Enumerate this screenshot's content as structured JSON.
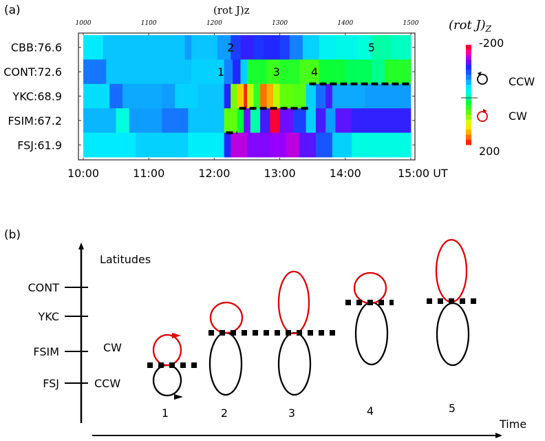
{
  "chart_data": [
    {
      "panel": "(a)",
      "type": "heatmap",
      "title": "(rot J)z",
      "xlabel": "UT",
      "x_range": [
        "10:00",
        "15:00"
      ],
      "xticks_bottom": [
        "10:00",
        "11:00",
        "12:00",
        "13:00",
        "14:00",
        "15:00 UT"
      ],
      "xticks_top": [
        "1000",
        "1100",
        "1200",
        "1300",
        "1400",
        "1500"
      ],
      "rows": [
        {
          "label": "CBB:76.6",
          "segments": [
            [
              10.0,
              10.3,
              -30
            ],
            [
              10.3,
              11.55,
              -45
            ],
            [
              11.55,
              11.65,
              -60
            ],
            [
              11.65,
              12.05,
              -45
            ],
            [
              12.05,
              12.25,
              -60
            ],
            [
              12.25,
              12.4,
              -100
            ],
            [
              12.4,
              12.6,
              -115
            ],
            [
              12.6,
              12.75,
              -105
            ],
            [
              12.75,
              13.0,
              -110
            ],
            [
              13.0,
              13.15,
              -100
            ],
            [
              13.15,
              13.35,
              -70
            ],
            [
              13.35,
              13.6,
              -40
            ],
            [
              13.6,
              13.85,
              -20
            ],
            [
              13.85,
              14.2,
              -10
            ],
            [
              14.2,
              14.4,
              0
            ],
            [
              14.4,
              14.7,
              10
            ],
            [
              14.7,
              15.0,
              5
            ]
          ]
        },
        {
          "label": "CONT:72.6",
          "segments": [
            [
              10.0,
              10.35,
              -75
            ],
            [
              10.35,
              11.65,
              -45
            ],
            [
              11.65,
              12.15,
              -40
            ],
            [
              12.15,
              12.28,
              -70
            ],
            [
              12.28,
              12.4,
              -110
            ],
            [
              12.4,
              12.5,
              -40
            ],
            [
              12.5,
              12.8,
              40
            ],
            [
              12.8,
              13.0,
              55
            ],
            [
              13.0,
              13.3,
              45
            ],
            [
              13.3,
              13.6,
              60
            ],
            [
              13.6,
              14.0,
              35
            ],
            [
              14.0,
              14.4,
              25
            ],
            [
              14.4,
              14.6,
              15
            ],
            [
              14.6,
              15.0,
              45
            ]
          ]
        },
        {
          "label": "YKC:68.9",
          "segments": [
            [
              10.0,
              10.4,
              -35
            ],
            [
              10.4,
              10.6,
              -80
            ],
            [
              10.6,
              11.2,
              -55
            ],
            [
              11.2,
              11.4,
              -60
            ],
            [
              11.4,
              11.75,
              -40
            ],
            [
              11.75,
              12.15,
              -45
            ],
            [
              12.15,
              12.25,
              -110
            ],
            [
              12.25,
              12.35,
              80
            ],
            [
              12.35,
              12.45,
              140
            ],
            [
              12.45,
              12.5,
              190
            ],
            [
              12.5,
              12.6,
              100
            ],
            [
              12.6,
              12.7,
              50
            ],
            [
              12.7,
              12.8,
              170
            ],
            [
              12.8,
              12.9,
              150
            ],
            [
              12.9,
              13.0,
              100
            ],
            [
              13.0,
              13.2,
              70
            ],
            [
              13.2,
              13.4,
              65
            ],
            [
              13.4,
              13.55,
              -40
            ],
            [
              13.55,
              13.7,
              -80
            ],
            [
              13.7,
              13.8,
              -120
            ],
            [
              13.8,
              14.3,
              -55
            ],
            [
              14.3,
              14.7,
              -60
            ],
            [
              14.7,
              15.0,
              -60
            ]
          ]
        },
        {
          "label": "FSIM:67.2",
          "segments": [
            [
              10.0,
              10.5,
              -50
            ],
            [
              10.5,
              10.7,
              0
            ],
            [
              10.7,
              11.2,
              -60
            ],
            [
              11.2,
              11.6,
              -75
            ],
            [
              11.6,
              12.15,
              -45
            ],
            [
              12.15,
              12.35,
              70
            ],
            [
              12.35,
              12.45,
              30
            ],
            [
              12.45,
              12.55,
              -130
            ],
            [
              12.55,
              12.7,
              10
            ],
            [
              12.7,
              12.85,
              -120
            ],
            [
              12.85,
              13.0,
              -190
            ],
            [
              13.0,
              13.2,
              -130
            ],
            [
              13.2,
              13.4,
              -100
            ],
            [
              13.4,
              13.55,
              -40
            ],
            [
              13.55,
              13.7,
              -120
            ],
            [
              13.7,
              13.85,
              -60
            ],
            [
              13.85,
              14.1,
              -125
            ],
            [
              14.1,
              15.0,
              -115
            ]
          ]
        },
        {
          "label": "FSJ:61.9",
          "segments": [
            [
              10.0,
              10.8,
              -30
            ],
            [
              10.8,
              11.6,
              -40
            ],
            [
              11.6,
              12.15,
              -25
            ],
            [
              12.15,
              12.25,
              -110
            ],
            [
              12.25,
              12.5,
              -150
            ],
            [
              12.5,
              12.85,
              -135
            ],
            [
              12.85,
              13.1,
              -140
            ],
            [
              13.1,
              13.3,
              -150
            ],
            [
              13.3,
              13.55,
              -125
            ],
            [
              13.55,
              13.8,
              -90
            ],
            [
              13.8,
              14.1,
              -40
            ],
            [
              14.1,
              15.0,
              -5
            ]
          ]
        }
      ],
      "annotations": [
        {
          "text": "1",
          "time": 12.1,
          "row": 1
        },
        {
          "text": "2",
          "time": 12.25,
          "row": 0
        },
        {
          "text": "3",
          "time": 12.95,
          "row": 1
        },
        {
          "text": "4",
          "time": 13.53,
          "row": 1
        },
        {
          "text": "5",
          "time": 14.4,
          "row": 0
        }
      ],
      "boundary_lines": [
        {
          "from": 13.45,
          "to": 15.0,
          "between_rows": [
            1,
            2
          ]
        },
        {
          "from": 12.38,
          "to": 13.45,
          "between_rows": [
            2,
            3
          ]
        },
        {
          "from": 12.18,
          "to": 12.35,
          "between_rows": [
            3,
            4
          ]
        }
      ],
      "colorbar": {
        "title": "(rot J)z",
        "min_label": "-200",
        "max_label": "200",
        "range": [
          -200,
          200
        ],
        "ccw_label": "CCW",
        "cw_label": "CW"
      }
    },
    {
      "panel": "(b)",
      "type": "diagram",
      "ylabel": "Latitudes",
      "xlabel": "Time",
      "yticks": [
        "CONT",
        "YKC",
        "FSIM",
        "FSJ"
      ],
      "side_labels": {
        "cw": "CW",
        "ccw": "CCW"
      },
      "stages": [
        {
          "label": "1",
          "cw_top": "FSIM",
          "boundary": "between FSIM and FSJ"
        },
        {
          "label": "2",
          "cw_top": "YKC",
          "boundary": "below YKC"
        },
        {
          "label": "3",
          "cw_top": "above CONT",
          "boundary": "below YKC"
        },
        {
          "label": "4",
          "cw_top": "CONT",
          "boundary": "below CONT"
        },
        {
          "label": "5",
          "cw_top": "above CONT",
          "boundary": "below CONT"
        }
      ]
    }
  ],
  "labels": {
    "panel_a": "(a)",
    "panel_b": "(b)",
    "colorbar_title_main": "(rot J)",
    "colorbar_title_sub": "Z",
    "top_title": "(rot J)z"
  }
}
